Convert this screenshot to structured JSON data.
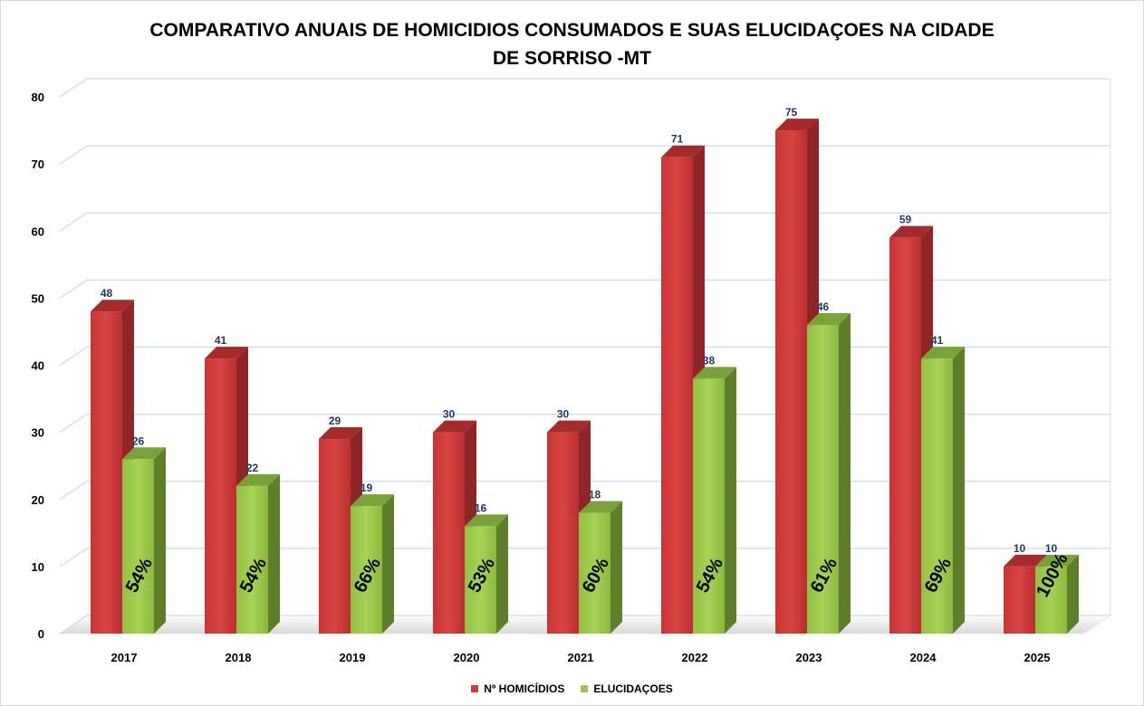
{
  "chart_data": {
    "type": "bar",
    "title": "COMPARATIVO ANUAIS DE HOMICIDIOS CONSUMADOS E SUAS ELUCIDAÇOES NA CIDADE\nDE SORRISO -MT",
    "categories": [
      "2017",
      "2018",
      "2019",
      "2020",
      "2021",
      "2022",
      "2023",
      "2024",
      "2025"
    ],
    "series": [
      {
        "name": "Nº HOMICÍDIOS",
        "color": "#d0393a",
        "values": [
          48,
          41,
          29,
          30,
          30,
          71,
          75,
          59,
          10
        ]
      },
      {
        "name": "ELUCIDAÇOES",
        "color": "#9bc84a",
        "values": [
          26,
          22,
          19,
          16,
          18,
          38,
          46,
          41,
          10
        ]
      }
    ],
    "percent_labels": [
      "54%",
      "54%",
      "66%",
      "53%",
      "60%",
      "54%",
      "61%",
      "69%",
      "100%"
    ],
    "y_ticks": [
      "0",
      "10",
      "20",
      "30",
      "40",
      "50",
      "60",
      "70",
      "80"
    ],
    "ylim": [
      0,
      80
    ],
    "grid": true,
    "style": "3d-column",
    "legend_position": "bottom"
  }
}
